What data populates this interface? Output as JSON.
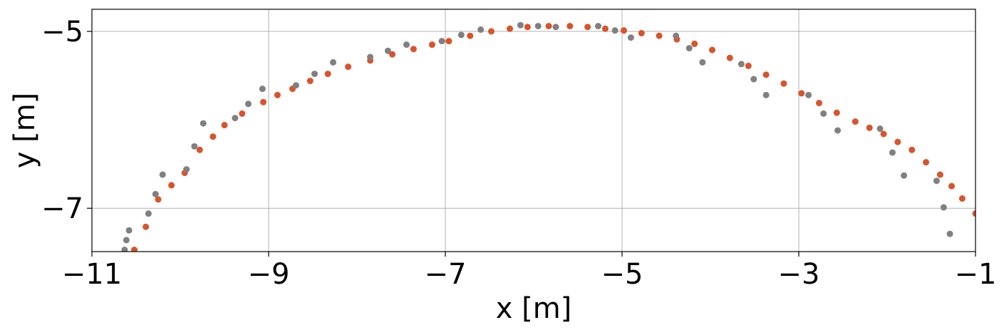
{
  "chart_data": {
    "type": "scatter",
    "xlabel": "x [m]",
    "ylabel": "y [m]",
    "xlim": [
      -11,
      -1
    ],
    "ylim": [
      -7.49,
      -4.75
    ],
    "xticks": [
      {
        "value": -11,
        "label": "−11"
      },
      {
        "value": -9,
        "label": "−9"
      },
      {
        "value": -7,
        "label": "−7"
      },
      {
        "value": -5,
        "label": "−5"
      },
      {
        "value": -3,
        "label": "−3"
      },
      {
        "value": -1,
        "label": "−1"
      }
    ],
    "yticks": [
      {
        "value": -7,
        "label": "−7"
      },
      {
        "value": -5,
        "label": "−5"
      }
    ],
    "grid": true,
    "series": [
      {
        "color": "#d9532b",
        "x": [
          -10.52,
          -10.39,
          -10.25,
          -10.1,
          -9.95,
          -9.78,
          -9.63,
          -9.5,
          -9.3,
          -9.06,
          -8.9,
          -8.73,
          -8.53,
          -8.33,
          -8.1,
          -7.85,
          -7.6,
          -7.36,
          -7.15,
          -6.96,
          -6.72,
          -6.48,
          -6.27,
          -6.07,
          -5.83,
          -5.59,
          -5.39,
          -5.19,
          -4.98,
          -4.78,
          -4.58,
          -4.38,
          -4.18,
          -3.98,
          -3.78,
          -3.57,
          -3.37,
          -3.17,
          -2.97,
          -2.77,
          -2.57,
          -2.36,
          -2.2,
          -2.04,
          -1.88,
          -1.72,
          -1.56,
          -1.4,
          -1.27,
          -1.15,
          -1.0
        ],
        "values": [
          -7.47,
          -7.21,
          -6.9,
          -6.74,
          -6.6,
          -6.34,
          -6.19,
          -6.06,
          -5.93,
          -5.8,
          -5.72,
          -5.65,
          -5.56,
          -5.48,
          -5.4,
          -5.33,
          -5.26,
          -5.2,
          -5.15,
          -5.11,
          -5.05,
          -5.0,
          -4.97,
          -4.95,
          -4.94,
          -4.94,
          -4.95,
          -4.97,
          -4.99,
          -5.02,
          -5.05,
          -5.09,
          -5.14,
          -5.21,
          -5.3,
          -5.39,
          -5.49,
          -5.59,
          -5.7,
          -5.81,
          -5.92,
          -6.02,
          -6.09,
          -6.16,
          -6.25,
          -6.34,
          -6.48,
          -6.62,
          -6.75,
          -6.89,
          -7.06
        ]
      },
      {
        "color": "#808080",
        "x": [
          -10.63,
          -10.61,
          -10.58,
          -10.36,
          -10.28,
          -10.2,
          -9.93,
          -9.84,
          -9.74,
          -9.38,
          -9.23,
          -9.07,
          -8.69,
          -8.48,
          -8.27,
          -7.85,
          -7.65,
          -7.44,
          -7.04,
          -6.82,
          -6.6,
          -6.15,
          -5.95,
          -5.75,
          -5.27,
          -5.08,
          -4.9,
          -4.39,
          -4.24,
          -4.09,
          -3.65,
          -3.51,
          -3.37,
          -2.89,
          -2.72,
          -2.56,
          -2.08,
          -1.94,
          -1.81,
          -1.44,
          -1.36,
          -1.29
        ],
        "values": [
          -7.47,
          -7.36,
          -7.25,
          -7.06,
          -6.84,
          -6.62,
          -6.56,
          -6.3,
          -6.04,
          -5.98,
          -5.82,
          -5.65,
          -5.61,
          -5.48,
          -5.35,
          -5.29,
          -5.22,
          -5.15,
          -5.11,
          -5.04,
          -4.98,
          -4.93,
          -4.94,
          -4.95,
          -4.94,
          -4.99,
          -5.07,
          -5.05,
          -5.19,
          -5.35,
          -5.37,
          -5.54,
          -5.72,
          -5.72,
          -5.93,
          -6.12,
          -6.1,
          -6.37,
          -6.63,
          -6.69,
          -6.99,
          -7.29
        ]
      }
    ]
  }
}
